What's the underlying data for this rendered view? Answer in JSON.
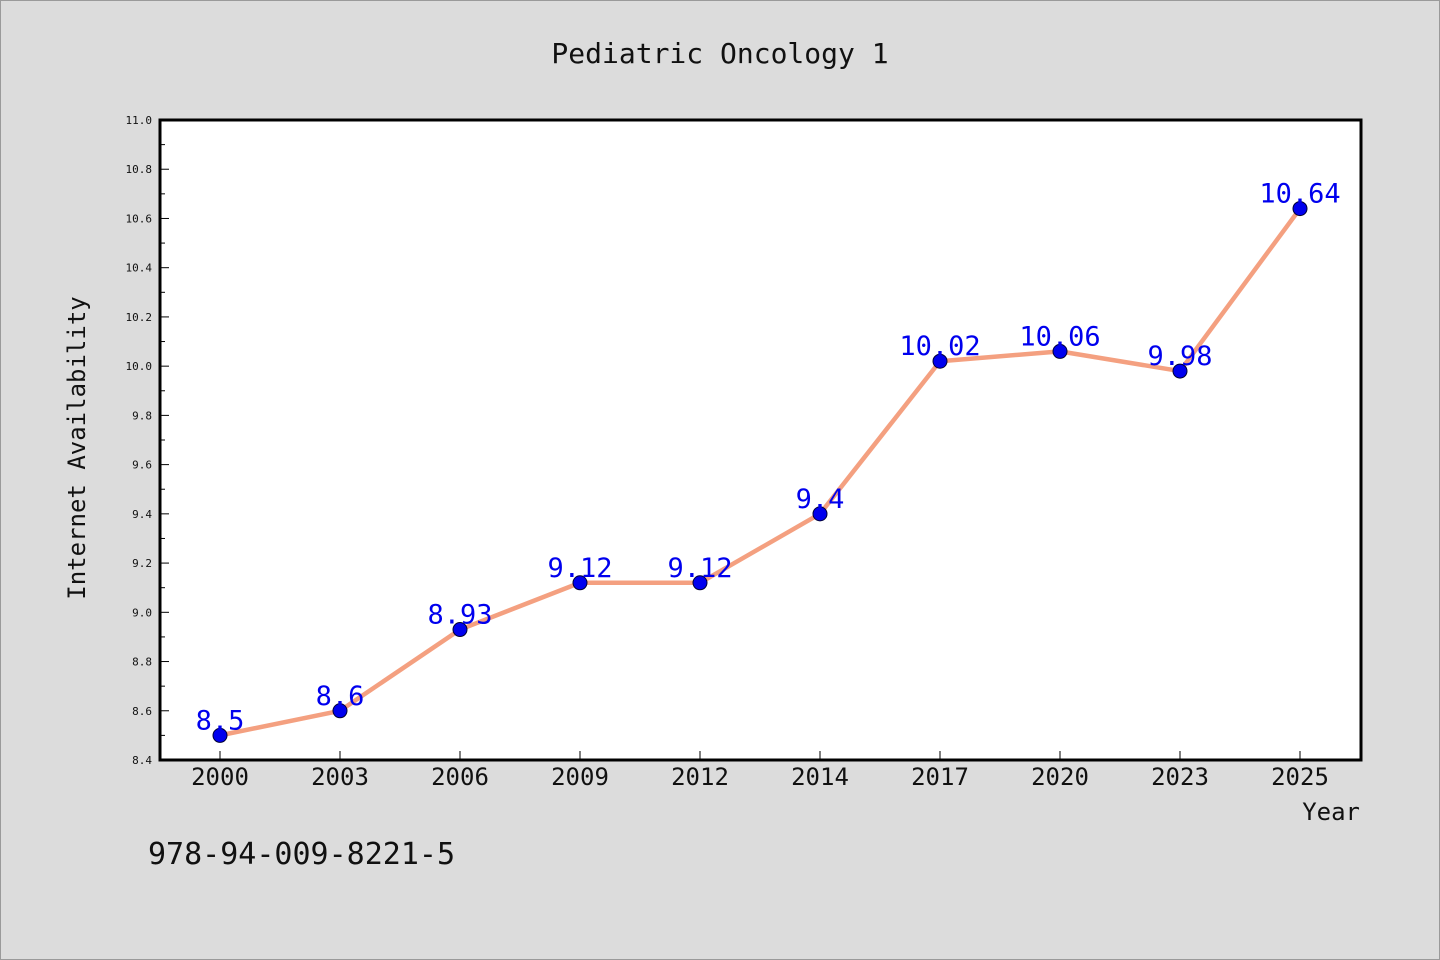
{
  "chart_data": {
    "type": "line",
    "title": "Pediatric Oncology 1",
    "xlabel": "Year",
    "ylabel": "Internet Availability",
    "categories": [
      "2000",
      "2003",
      "2006",
      "2009",
      "2012",
      "2014",
      "2017",
      "2020",
      "2023",
      "2025"
    ],
    "series": [
      {
        "values": [
          8.5,
          8.6,
          8.93,
          9.12,
          9.12,
          9.4,
          10.02,
          10.06,
          9.98,
          10.64
        ],
        "labels": [
          "8.5",
          "8.6",
          "8.93",
          "9.12",
          "9.12",
          "9.4",
          "10.02",
          "10.06",
          "9.98",
          "10.64"
        ]
      }
    ],
    "ylim": [
      8.4,
      11.0
    ],
    "yticks": [
      "8.4",
      "8.6",
      "8.8",
      "9.0",
      "9.2",
      "9.4",
      "9.6",
      "9.8",
      "10.0",
      "10.2",
      "10.4",
      "10.6",
      "10.8",
      "11.0"
    ],
    "grid": false,
    "colors": {
      "line": "#f4a080",
      "marker": "#0000ee",
      "data_label": "#0000ee",
      "background": "#dcdcdc",
      "plot_background": "#ffffff"
    }
  },
  "footer": {
    "isbn": "978-94-009-8221-5"
  }
}
